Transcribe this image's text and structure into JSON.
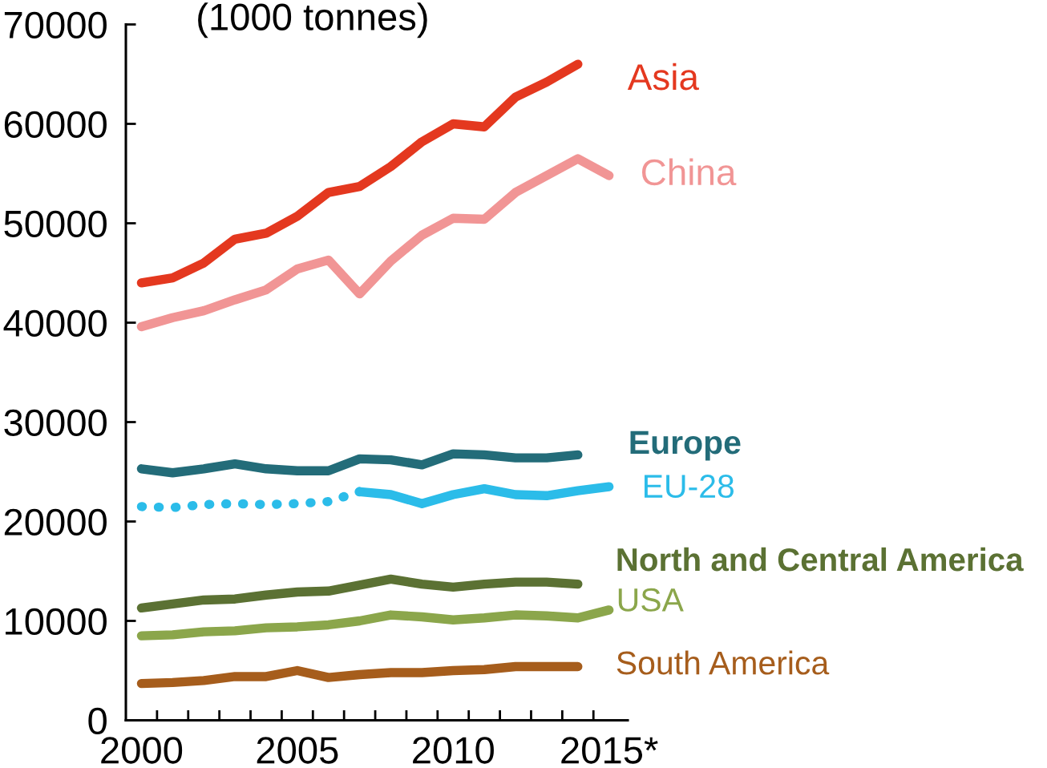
{
  "chart_data": {
    "type": "line",
    "ylabel": "(1000 tonnes)",
    "x": [
      2000,
      2001,
      2002,
      2003,
      2004,
      2005,
      2006,
      2007,
      2008,
      2009,
      2010,
      2011,
      2012,
      2013,
      2014,
      2015
    ],
    "xlim": [
      1999.5,
      2015.6
    ],
    "xticks": [
      2000,
      {
        "value": 2000.5,
        "label": null
      },
      {
        "value": 2001.5,
        "label": null
      },
      {
        "value": 2002.5,
        "label": null
      },
      {
        "value": 2003.5,
        "label": null
      },
      {
        "value": 2004.5,
        "label": null
      },
      2005,
      {
        "value": 2005.5,
        "label": null
      },
      {
        "value": 2006.5,
        "label": null
      },
      {
        "value": 2007.5,
        "label": null
      },
      {
        "value": 2008.5,
        "label": null
      },
      {
        "value": 2009.5,
        "label": null
      },
      2010,
      {
        "value": 2010.5,
        "label": null
      },
      {
        "value": 2011.5,
        "label": null
      },
      {
        "value": 2012.5,
        "label": null
      },
      {
        "value": 2013.5,
        "label": null
      },
      {
        "value": 2014.5,
        "label": null
      },
      {
        "value": 2015,
        "label": "2015*"
      }
    ],
    "ylim": [
      0,
      70000
    ],
    "yticks": [
      0,
      10000,
      20000,
      30000,
      40000,
      50000,
      60000,
      70000
    ],
    "line_style": "solid",
    "series": [
      {
        "name": "Asia",
        "color": "#e4381f",
        "values": [
          44000,
          44500,
          46000,
          48400,
          49000,
          50700,
          53100,
          53700,
          55700,
          58200,
          60000,
          59700,
          62700,
          64200,
          66000,
          null
        ]
      },
      {
        "name": "China",
        "color": "#f19595",
        "values": [
          39600,
          40500,
          41200,
          42300,
          43300,
          45400,
          46300,
          42900,
          46200,
          48800,
          50500,
          50400,
          53100,
          54800,
          56500,
          54800
        ]
      },
      {
        "name": "Europe",
        "color": "#236c79",
        "values": [
          25300,
          24900,
          25300,
          25800,
          25300,
          25100,
          25100,
          26300,
          26200,
          25700,
          26800,
          26700,
          26400,
          26400,
          26700,
          null
        ]
      },
      {
        "name": "EU-28",
        "color": "#2bbce9",
        "values": [
          null,
          null,
          null,
          null,
          null,
          null,
          null,
          23000,
          22700,
          21800,
          22700,
          23300,
          22700,
          22600,
          23100,
          23500
        ]
      },
      {
        "color": "#2bbce9",
        "line_style": "dotted",
        "values": [
          21500,
          21400,
          21700,
          21800,
          21700,
          21800,
          22000,
          23000,
          null,
          null,
          null,
          null,
          null,
          null,
          null,
          null
        ]
      },
      {
        "name": "North and Central America",
        "color": "#5b7133",
        "values": [
          11300,
          11700,
          12100,
          12200,
          12600,
          12900,
          13000,
          13600,
          14200,
          13700,
          13400,
          13700,
          13900,
          13900,
          13700,
          null
        ]
      },
      {
        "name": "USA",
        "color": "#8ba64b",
        "values": [
          8500,
          8600,
          8900,
          9000,
          9300,
          9400,
          9600,
          10000,
          10600,
          10400,
          10100,
          10300,
          10600,
          10500,
          10300,
          11100
        ]
      },
      {
        "name": "South America",
        "color": "#a65d1c",
        "values": [
          3700,
          3800,
          4000,
          4400,
          4400,
          5000,
          4300,
          4600,
          4800,
          4800,
          5000,
          5100,
          5400,
          5400,
          5400,
          null
        ]
      }
    ]
  }
}
